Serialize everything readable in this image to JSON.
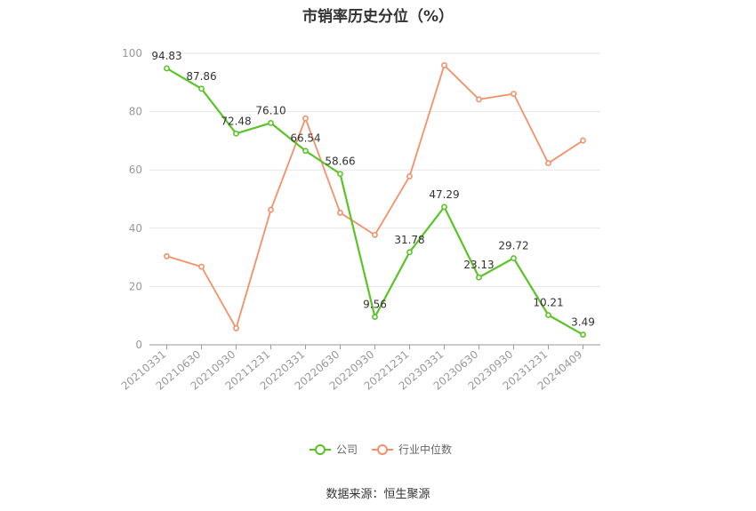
{
  "chart_data": {
    "type": "line",
    "title": "市销率历史分位（%）",
    "categories": [
      "20210331",
      "20210630",
      "20210930",
      "20211231",
      "20220331",
      "20220630",
      "20220930",
      "20221231",
      "20230331",
      "20230630",
      "20230930",
      "20231231",
      "20240409"
    ],
    "ylim": [
      0,
      100
    ],
    "yticks": [
      0,
      20,
      40,
      60,
      80,
      100
    ],
    "grid": true,
    "legend_position": "bottom-center",
    "series": [
      {
        "name": "公司",
        "color": "#5ac427",
        "values": [
          94.83,
          87.86,
          72.48,
          76.1,
          66.54,
          58.66,
          9.56,
          31.78,
          47.29,
          23.13,
          29.72,
          10.21,
          3.49
        ],
        "labels": [
          "94.83",
          "87.86",
          "72.48",
          "76.10",
          "66.54",
          "58.66",
          "9.56",
          "31.78",
          "47.29",
          "23.13",
          "29.72",
          "10.21",
          "3.49"
        ]
      },
      {
        "name": "行业中位数",
        "color": "#f39068",
        "values": [
          30.4,
          26.8,
          5.7,
          46.3,
          77.7,
          45.3,
          37.7,
          57.8,
          95.9,
          84.2,
          86.1,
          62.3,
          70.1
        ]
      }
    ]
  },
  "source": "数据来源：恒生聚源"
}
